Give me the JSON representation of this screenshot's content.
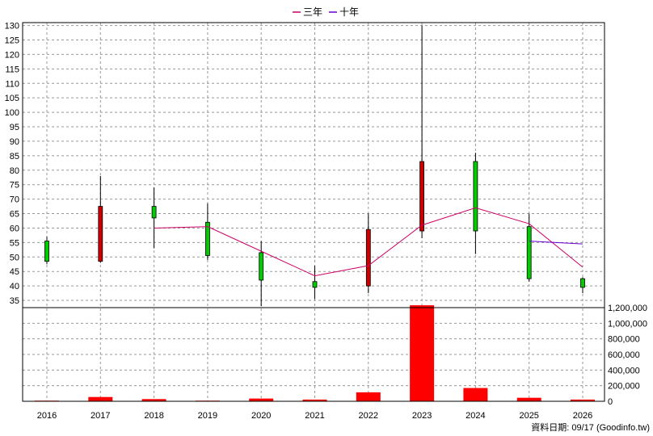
{
  "chart_data": {
    "type": "candlestick",
    "legend": {
      "placement": "top-center",
      "items": [
        {
          "label": "三年",
          "color": "#cc0066"
        },
        {
          "label": "十年",
          "color": "#6600cc"
        }
      ]
    },
    "categories": [
      "2016",
      "2017",
      "2018",
      "2019",
      "2020",
      "2021",
      "2022",
      "2023",
      "2024",
      "2025",
      "2026"
    ],
    "price_axis": {
      "min": 32.5,
      "max": 131,
      "ticks": [
        35,
        40,
        45,
        50,
        55,
        60,
        65,
        70,
        75,
        80,
        85,
        90,
        95,
        100,
        105,
        110,
        115,
        120,
        125,
        130
      ],
      "position": "left"
    },
    "candles": [
      {
        "year": "2016",
        "open": 48.5,
        "close": 55.5,
        "high": 57,
        "low": 47.5,
        "color": "#00cc00"
      },
      {
        "year": "2017",
        "open": 48.5,
        "close": 67.5,
        "high": 78,
        "low": 48,
        "color": "#cc0000"
      },
      {
        "year": "2018",
        "open": 63.5,
        "close": 67.5,
        "high": 74,
        "low": 53,
        "color": "#00cc00"
      },
      {
        "year": "2019",
        "open": 50.5,
        "close": 62,
        "high": 68.5,
        "low": 49,
        "color": "#00cc00"
      },
      {
        "year": "2020",
        "open": 42,
        "close": 51.5,
        "high": 55.5,
        "low": 33,
        "color": "#00cc00"
      },
      {
        "year": "2021",
        "open": 39.5,
        "close": 41.5,
        "high": 47,
        "low": 35.5,
        "color": "#00cc00"
      },
      {
        "year": "2022",
        "open": 40,
        "close": 59.5,
        "high": 65,
        "low": 37.5,
        "color": "#cc0000"
      },
      {
        "year": "2023",
        "open": 59,
        "close": 83,
        "high": 130,
        "low": 56.5,
        "color": "#cc0000"
      },
      {
        "year": "2024",
        "open": 59,
        "close": 83,
        "high": 86,
        "low": 51,
        "color": "#00cc00"
      },
      {
        "year": "2025",
        "open": 42.5,
        "close": 60.5,
        "high": 65,
        "low": 41.5,
        "color": "#00cc00"
      },
      {
        "year": "2026",
        "open": 39.5,
        "close": 42.5,
        "high": 43,
        "low": 37.5,
        "color": "#00cc00"
      }
    ],
    "series": [
      {
        "name": "三年",
        "color": "#cc0066",
        "points": [
          [
            "2018",
            60
          ],
          [
            "2019",
            60.5
          ],
          [
            "2020",
            52
          ],
          [
            "2021",
            43.5
          ],
          [
            "2022",
            47
          ],
          [
            "2023",
            61
          ],
          [
            "2024",
            67
          ],
          [
            "2025",
            61.5
          ],
          [
            "2026",
            46.5
          ]
        ]
      },
      {
        "name": "十年",
        "color": "#6600cc",
        "points": [
          [
            "2025",
            55.5
          ],
          [
            "2026",
            54.5
          ]
        ]
      }
    ],
    "volume_axis": {
      "min": 0,
      "max": 1200000,
      "ticks": [
        0,
        200000,
        400000,
        600000,
        800000,
        1000000,
        1200000
      ],
      "tick_labels": [
        "0",
        "200,000",
        "400,000",
        "600,000",
        "800,000",
        "1,000,000",
        "1,200,000"
      ],
      "position": "right"
    },
    "volume": {
      "color": "#ff0000",
      "values": [
        8000,
        55000,
        28000,
        8000,
        35000,
        22000,
        115000,
        1230000,
        170000,
        45000,
        22000
      ]
    },
    "grid": true
  },
  "footer": {
    "text": "資料日期: 09/17  (Goodinfo.tw)"
  }
}
